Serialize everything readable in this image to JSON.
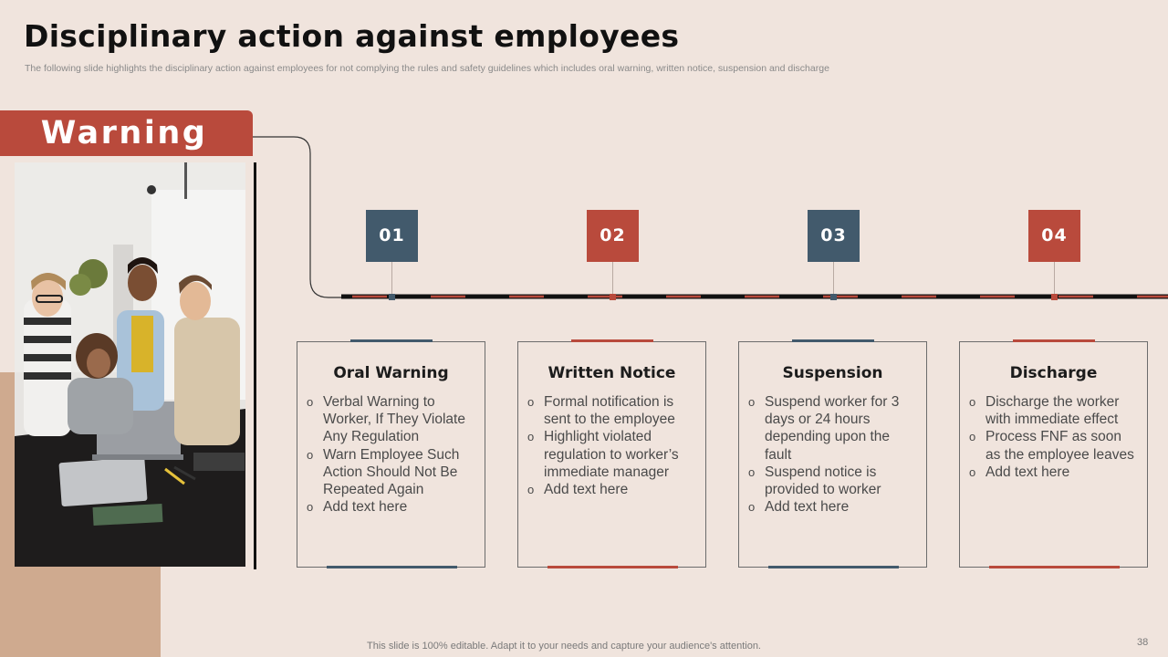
{
  "header": {
    "title": "Disciplinary action against employees",
    "subtitle": "The following slide highlights the disciplinary action against employees for not complying the rules and safety guidelines which includes oral warning, written notice, suspension and discharge"
  },
  "banner": {
    "label": "Warning"
  },
  "photo": {
    "description_icon": "team-photo-image"
  },
  "steps": [
    {
      "number": "01",
      "title": "Oral Warning",
      "accent": "#425a6c",
      "bullets": [
        "Verbal Warning to Worker, If They Violate Any Regulation",
        "Warn Employee Such Action Should Not Be Repeated Again",
        "Add text here"
      ]
    },
    {
      "number": "02",
      "title": "Written Notice",
      "accent": "#b94a3c",
      "bullets": [
        "Formal notification is sent to the employee",
        "Highlight violated regulation to worker’s immediate manager",
        "Add text here"
      ]
    },
    {
      "number": "03",
      "title": "Suspension",
      "accent": "#425a6c",
      "bullets": [
        "Suspend worker for 3 days or 24 hours depending upon the fault",
        "Suspend notice is provided to worker",
        "Add text here"
      ]
    },
    {
      "number": "04",
      "title": "Discharge",
      "accent": "#b94a3c",
      "bullets": [
        "Discharge the worker with immediate effect",
        "Process FNF as soon as the employee leaves",
        "Add text here"
      ]
    }
  ],
  "footer": {
    "note": "This slide is 100% editable. Adapt it to your needs and capture your audience's attention.",
    "page_number": "38"
  },
  "colors": {
    "background": "#f0e4dd",
    "red": "#b94a3c",
    "slate": "#425a6c",
    "tan": "#cfaa8f"
  }
}
